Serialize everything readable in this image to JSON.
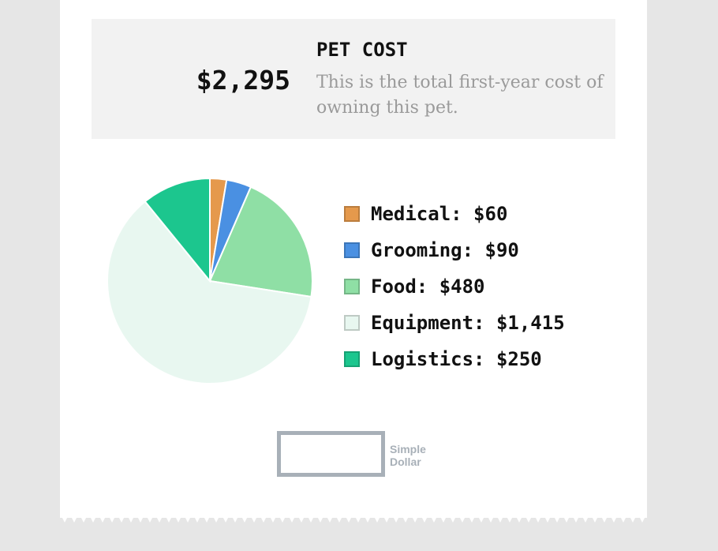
{
  "summary": {
    "title": "PET COST",
    "total": "$2,295",
    "description": "This is the total first-year cost of owning this pet."
  },
  "chart_data": {
    "type": "pie",
    "categories": [
      "Medical",
      "Grooming",
      "Food",
      "Equipment",
      "Logistics"
    ],
    "values": [
      60,
      90,
      480,
      1415,
      250
    ],
    "labels": [
      "Medical: $60",
      "Grooming: $90",
      "Food: $480",
      "Equipment: $1,415",
      "Logistics: $250"
    ],
    "colors": [
      "#e5994c",
      "#4a90e2",
      "#8fdfa5",
      "#e8f7f0",
      "#1cc68e"
    ],
    "legend_position": "right"
  },
  "logo": {
    "line1": "Simple",
    "line2": "Dollar"
  }
}
